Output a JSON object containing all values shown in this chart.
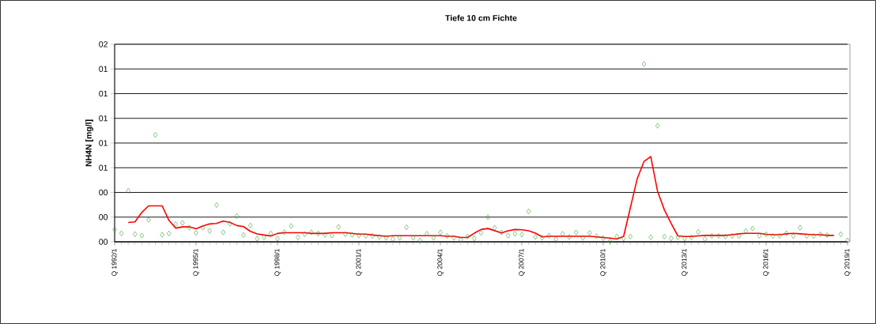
{
  "chart_data": {
    "type": "scatter",
    "title": "Tiefe  10 cm    Fichte",
    "ylabel": "NH4N [mg/l]",
    "categories": [
      "Q 1992/1",
      null,
      null,
      null,
      null,
      null,
      null,
      null,
      null,
      null,
      null,
      null,
      "Q 1995/1",
      null,
      null,
      null,
      null,
      null,
      null,
      null,
      null,
      null,
      null,
      null,
      "Q 1998/1",
      null,
      null,
      null,
      null,
      null,
      null,
      null,
      null,
      null,
      null,
      null,
      "Q 2001/1",
      null,
      null,
      null,
      null,
      null,
      null,
      null,
      null,
      null,
      null,
      null,
      "Q 2004/1",
      null,
      null,
      null,
      null,
      null,
      null,
      null,
      null,
      null,
      null,
      null,
      "Q 2007/1",
      null,
      null,
      null,
      null,
      null,
      null,
      null,
      null,
      null,
      null,
      null,
      "Q 2010/1",
      null,
      null,
      null,
      null,
      null,
      null,
      null,
      null,
      null,
      null,
      null,
      "Q 2013/1",
      null,
      null,
      null,
      null,
      null,
      null,
      null,
      null,
      null,
      null,
      null,
      "Q 2016/1",
      null,
      null,
      null,
      null,
      null,
      null,
      null,
      null,
      null,
      null,
      null,
      "Q 2019/1"
    ],
    "ylim": [
      0,
      1.6
    ],
    "yticks": [
      {
        "value": 0,
        "label": "00"
      },
      {
        "value": 0.2,
        "label": "00"
      },
      {
        "value": 0.4,
        "label": "00"
      },
      {
        "value": 0.6,
        "label": "01"
      },
      {
        "value": 0.8,
        "label": "01"
      },
      {
        "value": 1.0,
        "label": "01"
      },
      {
        "value": 1.2,
        "label": "01"
      },
      {
        "value": 1.4,
        "label": "01"
      },
      {
        "value": 1.6,
        "label": "02"
      }
    ],
    "grid": "y",
    "legend": false,
    "series": [
      {
        "marker": "diamond",
        "color": "#33a02c",
        "values": [
          0.1,
          0.068,
          0.413,
          0.062,
          0.051,
          0.179,
          0.866,
          0.057,
          0.068,
          0.143,
          0.153,
          0.115,
          0.072,
          0.115,
          0.089,
          0.298,
          0.077,
          0.147,
          0.209,
          0.055,
          0.132,
          0.026,
          0.036,
          0.068,
          0.026,
          0.077,
          0.128,
          0.036,
          0.062,
          0.077,
          0.068,
          0.057,
          0.051,
          0.121,
          0.062,
          0.057,
          0.051,
          0.048,
          0.048,
          0.039,
          0.033,
          0.022,
          0.033,
          0.117,
          0.033,
          0.011,
          0.065,
          0.033,
          0.076,
          0.048,
          0.033,
          0.017,
          0.043,
          0.028,
          0.072,
          0.2,
          0.113,
          0.076,
          0.05,
          0.065,
          0.059,
          0.246,
          0.039,
          0.033,
          0.05,
          0.022,
          0.065,
          0.039,
          0.076,
          0.033,
          0.072,
          0.045,
          0.03,
          0.004,
          0.043,
          0.028,
          0.043,
          null,
          1.44,
          0.037,
          0.94,
          0.043,
          0.028,
          0.037,
          0.028,
          0.037,
          0.08,
          0.022,
          0.048,
          0.048,
          0.043,
          0.048,
          0.048,
          0.087,
          0.108,
          0.048,
          0.061,
          0.048,
          0.048,
          0.069,
          0.048,
          0.115,
          0.048,
          0.048,
          0.061,
          0.054,
          null,
          0.061,
          0.011
        ]
      },
      {
        "type": "line",
        "color": "#ff0000",
        "values": [
          null,
          null,
          0.157,
          0.162,
          0.238,
          0.291,
          0.291,
          0.291,
          0.174,
          0.111,
          0.121,
          0.121,
          0.106,
          0.128,
          0.145,
          0.149,
          0.168,
          0.157,
          0.132,
          0.123,
          0.085,
          0.064,
          0.055,
          0.047,
          0.068,
          0.074,
          0.074,
          0.074,
          0.074,
          0.068,
          0.068,
          0.068,
          0.074,
          0.074,
          0.074,
          0.068,
          0.062,
          0.062,
          0.055,
          0.05,
          0.045,
          0.05,
          0.05,
          0.05,
          0.05,
          0.05,
          0.05,
          0.05,
          0.05,
          0.045,
          0.045,
          0.035,
          0.035,
          0.07,
          0.1,
          0.108,
          0.09,
          0.072,
          0.09,
          0.1,
          0.098,
          0.09,
          0.07,
          0.04,
          0.045,
          0.045,
          0.045,
          0.045,
          0.045,
          0.045,
          0.045,
          0.04,
          0.035,
          0.03,
          0.022,
          0.043,
          0.277,
          0.51,
          0.65,
          0.69,
          0.41,
          0.26,
          0.15,
          0.048,
          0.043,
          0.043,
          0.048,
          0.052,
          0.052,
          0.052,
          0.052,
          0.058,
          0.065,
          0.069,
          0.069,
          0.069,
          0.061,
          0.058,
          0.058,
          0.065,
          0.069,
          0.065,
          0.061,
          0.058,
          0.058,
          0.052,
          0.052,
          null,
          null
        ]
      }
    ]
  }
}
